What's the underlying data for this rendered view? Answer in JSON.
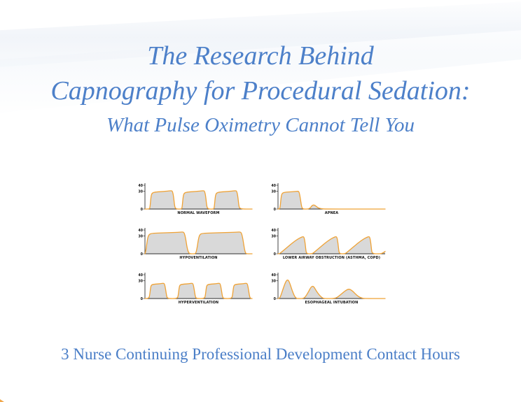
{
  "title": {
    "line1": "The Research Behind",
    "line2": "Capnography for Procedural Sedation:",
    "subtitle": "What Pulse Oximetry Cannot Tell You"
  },
  "footer": {
    "text": "3 Nurse Continuing Professional Development Contact Hours"
  },
  "colors": {
    "title_blue": "#4d80c9",
    "footer_blue": "#4a7ec7",
    "waveform_orange": "#efa235",
    "waveform_fill": "#d9d9d9",
    "axis_color": "#2f2f2f",
    "label_color": "#111111"
  },
  "chart_data": [
    {
      "type": "area",
      "label": "NORMAL WAVEFORM",
      "yticks": [
        40,
        30,
        0
      ],
      "ylim": [
        0,
        44
      ],
      "xlim": [
        0,
        150
      ],
      "points": [
        [
          0,
          0
        ],
        [
          6,
          0
        ],
        [
          7,
          2
        ],
        [
          8.5,
          22
        ],
        [
          10,
          27
        ],
        [
          14,
          28.5
        ],
        [
          22,
          29.3
        ],
        [
          32,
          30.2
        ],
        [
          37,
          31
        ],
        [
          38.5,
          30
        ],
        [
          40,
          22
        ],
        [
          41.5,
          5
        ],
        [
          43,
          0
        ],
        [
          51,
          0
        ],
        [
          52,
          2
        ],
        [
          53.5,
          22
        ],
        [
          55,
          27
        ],
        [
          59,
          28.5
        ],
        [
          67,
          29.3
        ],
        [
          77,
          30.2
        ],
        [
          82,
          31
        ],
        [
          83.5,
          30
        ],
        [
          85,
          22
        ],
        [
          86.5,
          5
        ],
        [
          88,
          0
        ],
        [
          96,
          0
        ],
        [
          97,
          2
        ],
        [
          98.5,
          22
        ],
        [
          100,
          27
        ],
        [
          104,
          28.5
        ],
        [
          112,
          29.3
        ],
        [
          122,
          30.2
        ],
        [
          127,
          31
        ],
        [
          128.5,
          30
        ],
        [
          130,
          22
        ],
        [
          131.5,
          5
        ],
        [
          133,
          0
        ],
        [
          150,
          0
        ]
      ]
    },
    {
      "type": "area",
      "label": "APNEA",
      "yticks": [
        40,
        30,
        0
      ],
      "ylim": [
        0,
        44
      ],
      "xlim": [
        0,
        150
      ],
      "points": [
        [
          0,
          0
        ],
        [
          2,
          0
        ],
        [
          3,
          3
        ],
        [
          4.5,
          22
        ],
        [
          6,
          27
        ],
        [
          10,
          28.3
        ],
        [
          18,
          29
        ],
        [
          26,
          29.8
        ],
        [
          28,
          30
        ],
        [
          29.5,
          29
        ],
        [
          31,
          20
        ],
        [
          33,
          4
        ],
        [
          34.5,
          0
        ],
        [
          42,
          0
        ],
        [
          45,
          1.5
        ],
        [
          48,
          6.5
        ],
        [
          51,
          7
        ],
        [
          54,
          4
        ],
        [
          57,
          1.5
        ],
        [
          61,
          0.5
        ],
        [
          66,
          0
        ],
        [
          150,
          0
        ]
      ]
    },
    {
      "type": "area",
      "label": "HYPOVENTILATION",
      "yticks": [
        40,
        30,
        0
      ],
      "ylim": [
        0,
        44
      ],
      "xlim": [
        0,
        150
      ],
      "points": [
        [
          0,
          0
        ],
        [
          1,
          3
        ],
        [
          2.5,
          16
        ],
        [
          4,
          28
        ],
        [
          6,
          33
        ],
        [
          10,
          34.5
        ],
        [
          20,
          35
        ],
        [
          35,
          35.6
        ],
        [
          48,
          36.2
        ],
        [
          53,
          36.8
        ],
        [
          55,
          35.5
        ],
        [
          57,
          26
        ],
        [
          59,
          10
        ],
        [
          61,
          2
        ],
        [
          63,
          0
        ],
        [
          68,
          0
        ],
        [
          70,
          0
        ],
        [
          71.5,
          2
        ],
        [
          73,
          10
        ],
        [
          75,
          26
        ],
        [
          77,
          33
        ],
        [
          81,
          34.5
        ],
        [
          92,
          35
        ],
        [
          108,
          35.6
        ],
        [
          126,
          36.2
        ],
        [
          133,
          36.8
        ],
        [
          135,
          35.5
        ],
        [
          137,
          26
        ],
        [
          139,
          10
        ],
        [
          140.5,
          2
        ],
        [
          142,
          0
        ],
        [
          150,
          0
        ]
      ]
    },
    {
      "type": "area",
      "label": "LOWER AIRWAY OBSTRUCTION (ASTHMA, COPD)",
      "yticks": [
        40,
        30,
        0
      ],
      "ylim": [
        0,
        44
      ],
      "xlim": [
        0,
        150
      ],
      "points": [
        [
          0,
          0
        ],
        [
          2,
          0
        ],
        [
          5,
          3
        ],
        [
          10,
          8
        ],
        [
          16,
          14
        ],
        [
          22,
          20
        ],
        [
          28,
          25
        ],
        [
          32,
          27.5
        ],
        [
          35,
          29
        ],
        [
          36.5,
          28
        ],
        [
          38,
          18
        ],
        [
          39,
          6
        ],
        [
          40,
          0
        ],
        [
          48,
          0
        ],
        [
          51,
          3
        ],
        [
          56,
          8
        ],
        [
          62,
          14
        ],
        [
          68,
          20
        ],
        [
          74,
          25
        ],
        [
          78,
          27.5
        ],
        [
          81,
          29
        ],
        [
          82.5,
          28
        ],
        [
          84,
          18
        ],
        [
          85,
          6
        ],
        [
          86,
          0
        ],
        [
          94,
          0
        ],
        [
          97,
          3
        ],
        [
          102,
          8
        ],
        [
          108,
          14
        ],
        [
          114,
          20
        ],
        [
          120,
          25
        ],
        [
          124,
          27.5
        ],
        [
          127,
          29
        ],
        [
          128.5,
          28
        ],
        [
          130,
          18
        ],
        [
          131,
          6
        ],
        [
          132,
          0
        ],
        [
          144,
          0
        ],
        [
          147,
          1.5
        ],
        [
          150,
          4
        ]
      ]
    },
    {
      "type": "area",
      "label": "HYPERVENTILATION",
      "yticks": [
        40,
        30,
        0
      ],
      "ylim": [
        0,
        44
      ],
      "xlim": [
        0,
        150
      ],
      "points": [
        [
          0,
          0
        ],
        [
          5,
          0
        ],
        [
          6.5,
          4
        ],
        [
          8,
          20
        ],
        [
          9.5,
          23.5
        ],
        [
          15,
          24.3
        ],
        [
          22,
          25
        ],
        [
          26,
          25.8
        ],
        [
          27.5,
          24.5
        ],
        [
          29,
          15
        ],
        [
          30.5,
          3
        ],
        [
          32,
          0
        ],
        [
          45,
          0
        ],
        [
          46.5,
          4
        ],
        [
          48,
          20
        ],
        [
          49.5,
          23.5
        ],
        [
          55,
          24.3
        ],
        [
          62,
          25
        ],
        [
          66,
          25.8
        ],
        [
          67.5,
          24.5
        ],
        [
          69,
          15
        ],
        [
          70.5,
          3
        ],
        [
          72,
          0
        ],
        [
          83,
          0
        ],
        [
          84.5,
          4
        ],
        [
          86,
          20
        ],
        [
          87.5,
          23.5
        ],
        [
          93,
          24.3
        ],
        [
          100,
          25
        ],
        [
          104,
          25.8
        ],
        [
          105.5,
          24.5
        ],
        [
          107,
          15
        ],
        [
          108.5,
          3
        ],
        [
          110,
          0
        ],
        [
          121,
          0
        ],
        [
          122.5,
          4
        ],
        [
          124,
          20
        ],
        [
          125.5,
          23.5
        ],
        [
          131,
          24.3
        ],
        [
          138,
          25
        ],
        [
          142,
          25.8
        ],
        [
          143.5,
          24.5
        ],
        [
          145,
          15
        ],
        [
          146.5,
          3
        ],
        [
          148,
          0
        ],
        [
          150,
          0
        ]
      ]
    },
    {
      "type": "area",
      "label": "ESOPHAGEAL INTUBATION",
      "yticks": [
        40,
        30,
        0
      ],
      "ylim": [
        0,
        44
      ],
      "xlim": [
        0,
        150
      ],
      "points": [
        [
          0,
          0
        ],
        [
          2,
          0
        ],
        [
          4,
          5
        ],
        [
          7,
          16
        ],
        [
          10,
          26
        ],
        [
          12,
          30.5
        ],
        [
          13.5,
          31.5
        ],
        [
          15,
          30
        ],
        [
          17,
          24
        ],
        [
          20,
          13
        ],
        [
          23,
          4
        ],
        [
          25.5,
          0.5
        ],
        [
          27,
          0
        ],
        [
          36,
          0
        ],
        [
          39,
          4
        ],
        [
          43,
          12
        ],
        [
          46,
          19
        ],
        [
          48.5,
          21
        ],
        [
          50.5,
          19.5
        ],
        [
          53,
          14
        ],
        [
          57,
          7
        ],
        [
          61,
          2
        ],
        [
          64,
          0
        ],
        [
          80,
          0
        ],
        [
          84,
          3
        ],
        [
          89,
          8
        ],
        [
          94,
          13
        ],
        [
          98,
          15.8
        ],
        [
          101,
          15.5
        ],
        [
          105,
          12
        ],
        [
          109,
          7
        ],
        [
          113,
          3
        ],
        [
          117,
          0.8
        ],
        [
          121,
          0
        ],
        [
          150,
          0
        ]
      ]
    }
  ]
}
